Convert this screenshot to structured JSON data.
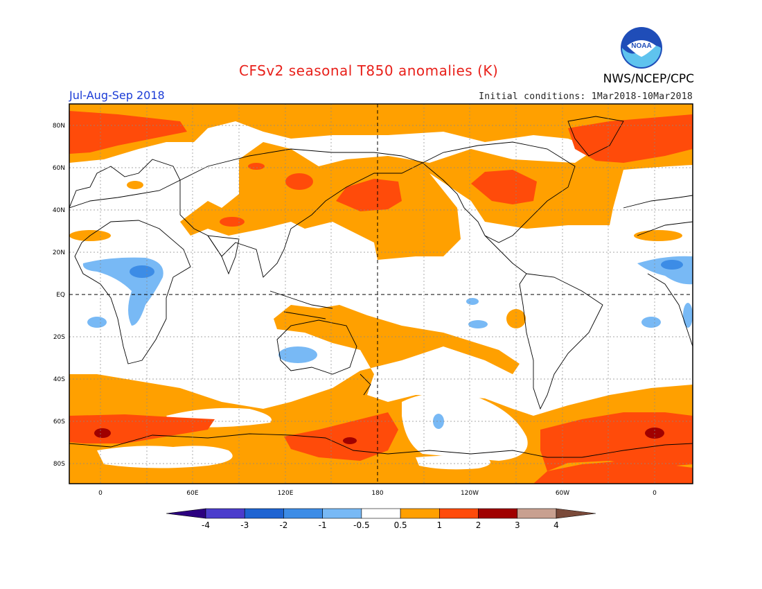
{
  "header": {
    "title": "CFSv2 seasonal T850 anomalies (K)",
    "period": "Jul-Aug-Sep 2018",
    "initial_conditions": "Initial conditions: 1Mar2018-10Mar2018",
    "agency": "NWS/NCEP/CPC",
    "logo_text": "NOAA"
  },
  "map": {
    "projection": "cylindrical equidistant",
    "lon_range": [
      -20,
      340
    ],
    "lat_range": [
      -90,
      90
    ],
    "lat_labels": [
      "80N",
      "60N",
      "40N",
      "20N",
      "EQ",
      "20S",
      "40S",
      "60S",
      "80S"
    ],
    "lon_labels": [
      "0",
      "60E",
      "120E",
      "180",
      "120W",
      "60W",
      "0"
    ],
    "grid": "dotted",
    "reference_lines": "dashed equator and dateline"
  },
  "colorbar": {
    "levels": [
      "-4",
      "-3",
      "-2",
      "-1",
      "-0.5",
      "0.5",
      "1",
      "2",
      "3",
      "4"
    ],
    "colors": [
      "#2c0080",
      "#4b3ccc",
      "#1e64d2",
      "#3c8ce6",
      "#78b9f5",
      "#ffffff",
      "#ffa000",
      "#ff4b0a",
      "#a00000",
      "#c8a090",
      "#7a4a3a"
    ]
  }
}
